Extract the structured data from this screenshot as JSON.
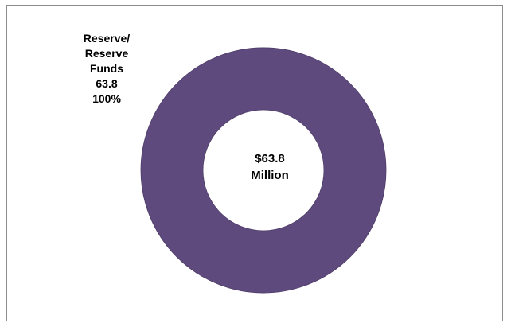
{
  "chart_data": {
    "type": "pie",
    "style": "donut",
    "categories": [
      "Reserve/ Reserve Funds"
    ],
    "values": [
      63.8
    ],
    "percentages": [
      "100%"
    ],
    "colors": [
      "#5f4a7d"
    ],
    "center_text": [
      "$63.8",
      "Million"
    ],
    "data_labels": [
      {
        "lines": [
          "Reserve/",
          "Reserve",
          "Funds",
          "63.8",
          "100%"
        ]
      }
    ]
  }
}
